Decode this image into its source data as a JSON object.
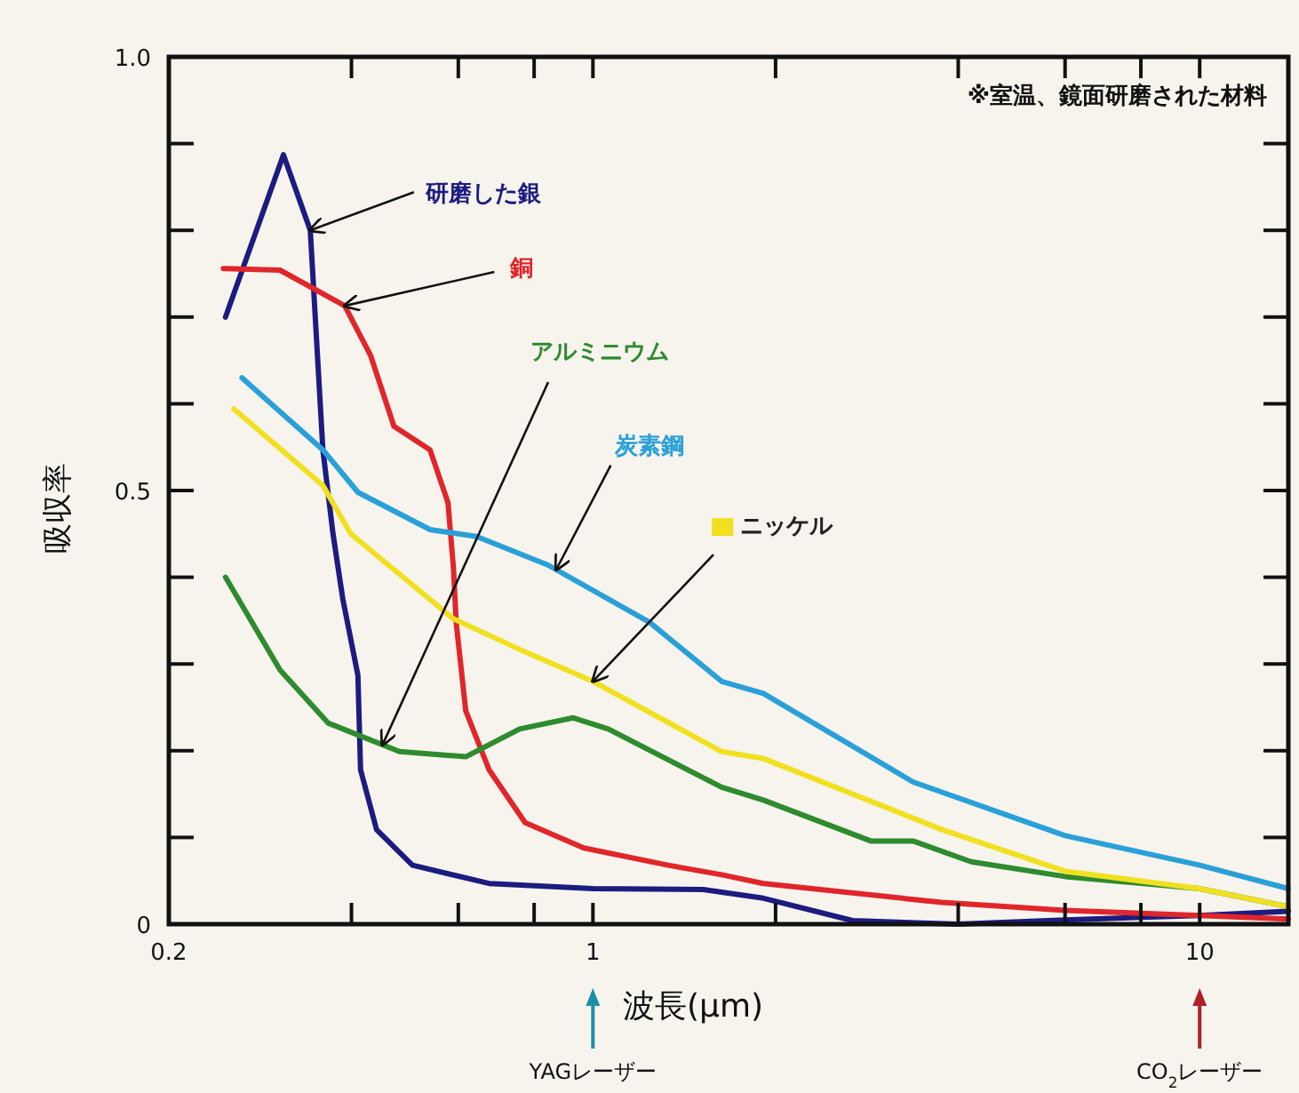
{
  "chart_data": {
    "type": "line",
    "xlabel": "波長(μm)",
    "ylabel": "吸収率",
    "log": "x",
    "xlim": [
      0.2,
      14
    ],
    "ylim": [
      0,
      1.0
    ],
    "xticks": [
      {
        "value": 0.2,
        "label": "0.2"
      },
      {
        "value": 0.4,
        "label": null
      },
      {
        "value": 0.6,
        "label": null
      },
      {
        "value": 0.8,
        "label": null
      },
      {
        "value": 1,
        "label": "1"
      },
      {
        "value": 2,
        "label": null
      },
      {
        "value": 4,
        "label": null
      },
      {
        "value": 6,
        "label": null
      },
      {
        "value": 8,
        "label": null
      },
      {
        "value": 10,
        "label": "10"
      }
    ],
    "yticks": [
      {
        "value": 0,
        "label": "0"
      },
      {
        "value": 0.1,
        "label": null
      },
      {
        "value": 0.2,
        "label": null
      },
      {
        "value": 0.3,
        "label": null
      },
      {
        "value": 0.4,
        "label": null
      },
      {
        "value": 0.5,
        "label": "0.5"
      },
      {
        "value": 0.6,
        "label": null
      },
      {
        "value": 0.7,
        "label": null
      },
      {
        "value": 0.8,
        "label": null
      },
      {
        "value": 0.9,
        "label": null
      },
      {
        "value": 1.0,
        "label": "1.0"
      }
    ],
    "series": [
      {
        "name": "研磨した銀",
        "color": "#1c1c80",
        "x": [
          0.248,
          0.309,
          0.342,
          0.359,
          0.373,
          0.387,
          0.41,
          0.414,
          0.44,
          0.504,
          0.674,
          1.0,
          1.52,
          1.91,
          2.68,
          4,
          6,
          10,
          14
        ],
        "values": [
          0.7,
          0.887,
          0.8,
          0.547,
          0.45,
          0.375,
          0.287,
          0.178,
          0.109,
          0.068,
          0.047,
          0.041,
          0.04,
          0.03,
          0.004,
          0.0,
          0.005,
          0.01,
          0.015
        ]
      },
      {
        "name": "銅",
        "color": "#e0262a",
        "x": [
          0.246,
          0.305,
          0.39,
          0.43,
          0.47,
          0.539,
          0.577,
          0.589,
          0.595,
          0.617,
          0.674,
          0.773,
          0.966,
          1.33,
          1.63,
          1.91,
          3.76,
          6,
          10,
          14
        ],
        "values": [
          0.756,
          0.754,
          0.713,
          0.656,
          0.574,
          0.547,
          0.486,
          0.41,
          0.348,
          0.246,
          0.178,
          0.117,
          0.088,
          0.068,
          0.057,
          0.047,
          0.025,
          0.016,
          0.01,
          0.006
        ]
      },
      {
        "name": "アルミニウム",
        "color": "#2e8b2e",
        "x": [
          0.248,
          0.305,
          0.366,
          0.48,
          0.617,
          0.757,
          0.928,
          1.06,
          1.63,
          1.91,
          2.87,
          3.37,
          4.2,
          6,
          10,
          14
        ],
        "values": [
          0.4,
          0.293,
          0.232,
          0.199,
          0.193,
          0.225,
          0.238,
          0.225,
          0.158,
          0.143,
          0.096,
          0.096,
          0.072,
          0.055,
          0.041,
          0.02
        ]
      },
      {
        "name": "炭素鋼",
        "color": "#2aa0d8",
        "x": [
          0.264,
          0.359,
          0.41,
          0.539,
          0.643,
          0.844,
          1.24,
          1.63,
          1.91,
          3.37,
          6,
          10,
          14
        ],
        "values": [
          0.63,
          0.547,
          0.498,
          0.455,
          0.447,
          0.414,
          0.348,
          0.28,
          0.266,
          0.164,
          0.102,
          0.068,
          0.041
        ]
      },
      {
        "name": "ニッケル",
        "color": "#f0e020",
        "x": [
          0.256,
          0.359,
          0.399,
          0.589,
          0.773,
          1.0,
          1.63,
          1.91,
          3.76,
          6,
          10,
          14
        ],
        "values": [
          0.594,
          0.506,
          0.45,
          0.352,
          0.314,
          0.28,
          0.199,
          0.191,
          0.109,
          0.061,
          0.041,
          0.02
        ]
      }
    ],
    "annotations": [
      "※室温、鏡面研磨された材料",
      "YAGレーザー",
      "CO$_{2}$レーザー"
    ]
  }
}
